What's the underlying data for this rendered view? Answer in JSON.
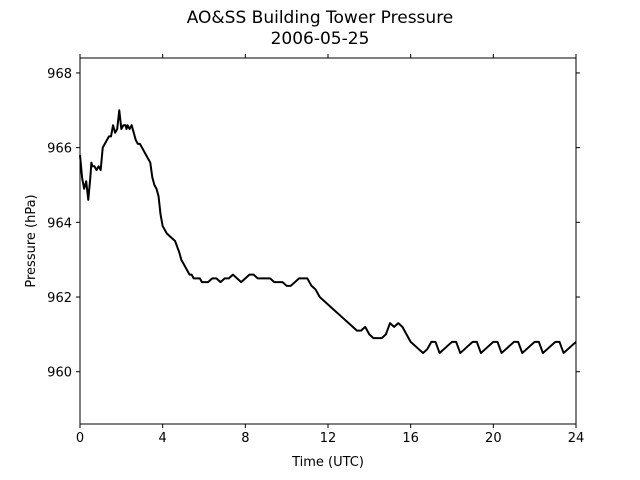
{
  "chart_data": {
    "type": "line",
    "title": "AO&SS Building Tower Pressure",
    "subtitle": "2006-05-25",
    "xlabel": "Time (UTC)",
    "ylabel": "Pressure (hPa)",
    "xlim": [
      0,
      24
    ],
    "ylim": [
      958.6,
      968.4
    ],
    "xticks": [
      0,
      4,
      8,
      12,
      16,
      20,
      24
    ],
    "yticks": [
      960,
      962,
      964,
      966,
      968
    ],
    "grid": false,
    "series_color": "#000000",
    "series": [
      {
        "x": [
          0.0,
          0.1,
          0.2,
          0.3,
          0.4,
          0.5,
          0.55,
          0.6,
          0.7,
          0.8,
          0.9,
          1.0,
          1.1,
          1.2,
          1.3,
          1.4,
          1.5,
          1.6,
          1.7,
          1.8,
          1.9,
          2.0,
          2.1,
          2.2,
          2.25,
          2.3,
          2.4,
          2.5,
          2.55,
          2.6,
          2.7,
          2.8,
          2.9,
          3.0,
          3.1,
          3.2,
          3.3,
          3.4,
          3.5,
          3.6,
          3.7,
          3.8,
          3.9,
          4.0,
          4.2,
          4.4,
          4.6,
          4.8,
          4.9,
          5.0,
          5.1,
          5.2,
          5.3,
          5.4,
          5.5,
          5.6,
          5.7,
          5.8,
          5.9,
          6.0,
          6.2,
          6.4,
          6.6,
          6.8,
          7.0,
          7.2,
          7.4,
          7.6,
          7.8,
          8.0,
          8.2,
          8.4,
          8.6,
          8.8,
          9.0,
          9.2,
          9.4,
          9.6,
          9.8,
          10.0,
          10.2,
          10.4,
          10.6,
          10.8,
          11.0,
          11.2,
          11.4,
          11.6,
          11.8,
          12.0,
          12.2,
          12.4,
          12.6,
          12.8,
          13.0,
          13.2,
          13.4,
          13.6,
          13.8,
          14.0,
          14.2,
          14.4,
          14.6,
          14.8,
          15.0,
          15.2,
          15.4,
          15.6,
          15.8,
          16.0,
          16.2,
          16.4,
          16.6,
          16.8,
          17.0,
          17.2,
          17.4,
          17.6,
          17.8,
          18.0,
          18.2,
          18.4,
          18.6,
          18.8,
          19.0,
          19.2,
          19.4,
          19.6,
          19.8,
          20.0,
          20.2,
          20.4,
          20.6,
          20.8,
          21.0,
          21.2,
          21.4,
          21.6,
          21.8,
          22.0,
          22.2,
          22.4,
          22.6,
          22.8,
          23.0,
          23.2,
          23.4,
          23.6,
          23.8,
          24.0
        ],
        "y": [
          965.8,
          965.2,
          964.9,
          965.1,
          964.6,
          965.2,
          965.6,
          965.5,
          965.5,
          965.4,
          965.5,
          965.4,
          966.0,
          966.1,
          966.2,
          966.3,
          966.3,
          966.6,
          966.4,
          966.5,
          967.0,
          966.5,
          966.6,
          966.6,
          966.5,
          966.6,
          966.5,
          966.6,
          966.5,
          966.4,
          966.2,
          966.1,
          966.1,
          966.0,
          965.9,
          965.8,
          965.7,
          965.6,
          965.2,
          965.0,
          964.9,
          964.7,
          964.2,
          963.9,
          963.7,
          963.6,
          963.5,
          963.2,
          963.0,
          962.9,
          962.8,
          962.7,
          962.6,
          962.6,
          962.5,
          962.5,
          962.5,
          962.5,
          962.4,
          962.4,
          962.4,
          962.5,
          962.5,
          962.4,
          962.5,
          962.5,
          962.6,
          962.5,
          962.4,
          962.5,
          962.6,
          962.6,
          962.5,
          962.5,
          962.5,
          962.5,
          962.4,
          962.4,
          962.4,
          962.3,
          962.3,
          962.4,
          962.5,
          962.5,
          962.5,
          962.3,
          962.2,
          962.0,
          961.9,
          961.8,
          961.7,
          961.6,
          961.5,
          961.4,
          961.3,
          961.2,
          961.1,
          961.1,
          961.2,
          961.0,
          960.9,
          960.9,
          960.9,
          961.0,
          961.3,
          961.2,
          961.3,
          961.2,
          961.0,
          960.8,
          960.7,
          960.6,
          960.5,
          960.6,
          960.8,
          960.8,
          960.5,
          960.6,
          960.7,
          960.8,
          960.8,
          960.5,
          960.6,
          960.7,
          960.8,
          960.8,
          960.5,
          960.6,
          960.7,
          960.8,
          960.8,
          960.5,
          960.6,
          960.7,
          960.8,
          960.8,
          960.5,
          960.6,
          960.7,
          960.8,
          960.8,
          960.5,
          960.6,
          960.7,
          960.8,
          960.8,
          960.5,
          960.6,
          960.7,
          960.8
        ]
      }
    ]
  }
}
